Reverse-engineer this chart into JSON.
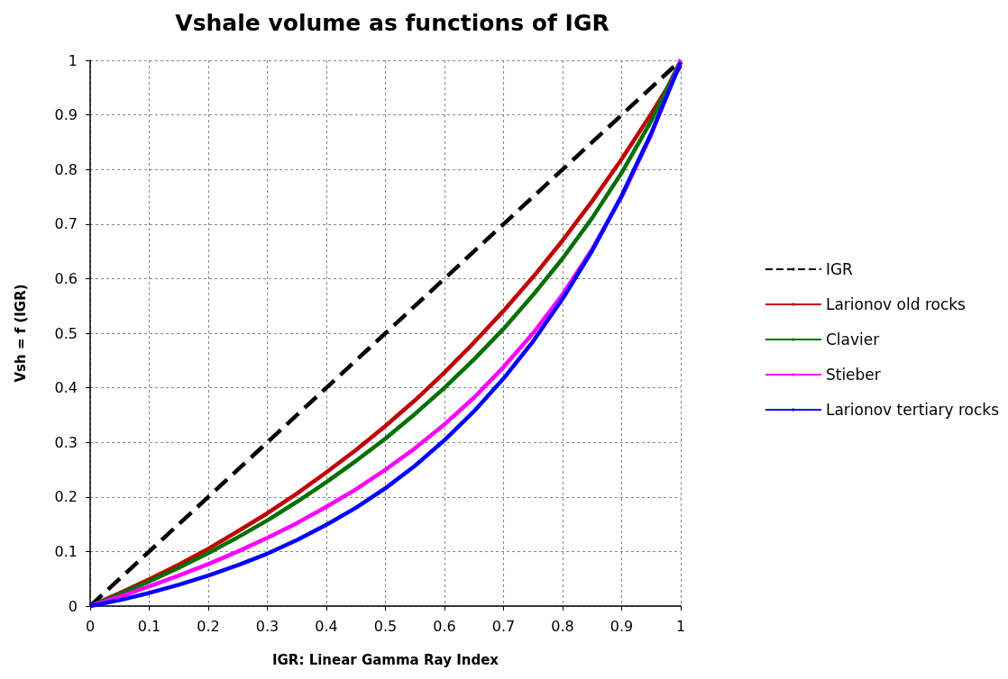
{
  "chart_data": {
    "type": "line",
    "title": "Vshale volume as functions of IGR",
    "xlabel": "IGR: Linear Gamma Ray Index",
    "ylabel": "Vsh = f (IGR)",
    "x": [
      0,
      0.05,
      0.1,
      0.15,
      0.2,
      0.25,
      0.3,
      0.35,
      0.4,
      0.45,
      0.5,
      0.55,
      0.6,
      0.65,
      0.7,
      0.75,
      0.8,
      0.85,
      0.9,
      0.95,
      1
    ],
    "series": [
      {
        "name": "IGR",
        "color": "#000000",
        "line_style": "dashed",
        "values": [
          0,
          0.05,
          0.1,
          0.15,
          0.2,
          0.25,
          0.3,
          0.35,
          0.4,
          0.45,
          0.5,
          0.55,
          0.6,
          0.65,
          0.7,
          0.75,
          0.8,
          0.85,
          0.9,
          0.95,
          1
        ]
      },
      {
        "name": "Larionov old rocks",
        "color": "#c00000",
        "values": [
          0,
          0.024,
          0.049,
          0.076,
          0.105,
          0.137,
          0.17,
          0.206,
          0.245,
          0.286,
          0.33,
          0.377,
          0.428,
          0.483,
          0.541,
          0.603,
          0.67,
          0.742,
          0.819,
          0.902,
          0.99
        ]
      },
      {
        "name": "Clavier",
        "color": "#007000",
        "values": [
          0,
          0.022,
          0.045,
          0.07,
          0.097,
          0.126,
          0.157,
          0.191,
          0.227,
          0.266,
          0.307,
          0.352,
          0.4,
          0.452,
          0.508,
          0.57,
          0.637,
          0.711,
          0.794,
          0.889,
          1
        ]
      },
      {
        "name": "Stieber",
        "color": "#ff00ff",
        "values": [
          0,
          0.017,
          0.036,
          0.056,
          0.077,
          0.1,
          0.125,
          0.152,
          0.182,
          0.214,
          0.25,
          0.289,
          0.333,
          0.382,
          0.438,
          0.5,
          0.571,
          0.654,
          0.75,
          0.864,
          1
        ]
      },
      {
        "name": "Larionov tertiary rocks",
        "color": "#0000ff",
        "values": [
          0,
          0.011,
          0.024,
          0.039,
          0.056,
          0.075,
          0.096,
          0.121,
          0.149,
          0.18,
          0.216,
          0.257,
          0.304,
          0.357,
          0.417,
          0.485,
          0.563,
          0.651,
          0.752,
          0.866,
          0.996
        ]
      }
    ],
    "xlim": [
      0,
      1
    ],
    "ylim": [
      0,
      1
    ],
    "xticks": [
      0,
      0.1,
      0.2,
      0.3,
      0.4,
      0.5,
      0.6,
      0.7,
      0.8,
      0.9,
      1
    ],
    "yticks": [
      0,
      0.1,
      0.2,
      0.3,
      0.4,
      0.5,
      0.6,
      0.7,
      0.8,
      0.9,
      1
    ],
    "grid": true,
    "legend": "right",
    "marker": "none",
    "line_style": "solid"
  }
}
